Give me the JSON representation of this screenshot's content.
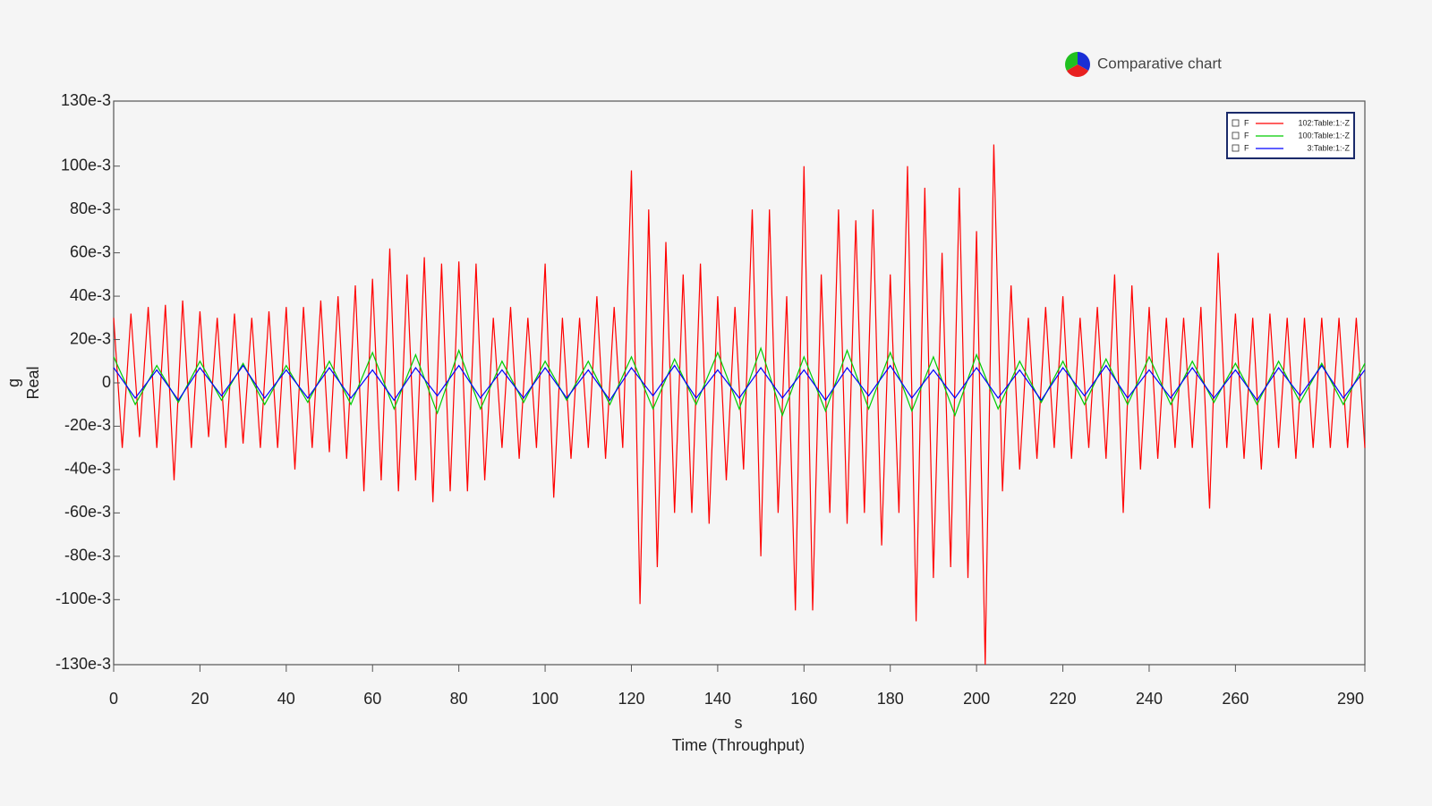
{
  "header": {
    "title": "Comparative chart"
  },
  "chart_data": {
    "type": "line",
    "ylabel": [
      "g",
      "Real"
    ],
    "xlabel": [
      "s",
      "Time (Throughput)"
    ],
    "xlim": [
      0,
      290
    ],
    "xticks": [
      0,
      20,
      40,
      60,
      80,
      100,
      120,
      140,
      160,
      180,
      200,
      220,
      240,
      260,
      290
    ],
    "ylim": [
      -0.13,
      0.13
    ],
    "yticks": [
      {
        "value": 0.13,
        "label": "130e-3"
      },
      {
        "value": 0.1,
        "label": "100e-3"
      },
      {
        "value": 0.08,
        "label": "80e-3"
      },
      {
        "value": 0.06,
        "label": "60e-3"
      },
      {
        "value": 0.04,
        "label": "40e-3"
      },
      {
        "value": 0.02,
        "label": "20e-3"
      },
      0,
      {
        "value": -0.02,
        "label": "-20e-3"
      },
      {
        "value": -0.04,
        "label": "-40e-3"
      },
      {
        "value": -0.06,
        "label": "-60e-3"
      },
      {
        "value": -0.08,
        "label": "-80e-3"
      },
      {
        "value": -0.1,
        "label": "-100e-3"
      },
      {
        "value": -0.13,
        "label": "-130e-3"
      }
    ],
    "legend_flag": "F",
    "series": [
      {
        "name": "102:Table:1:-Z",
        "color": "#ff0000",
        "x": [
          0,
          2,
          4,
          6,
          8,
          10,
          12,
          14,
          16,
          18,
          20,
          22,
          24,
          26,
          28,
          30,
          32,
          34,
          36,
          38,
          40,
          42,
          44,
          46,
          48,
          50,
          52,
          54,
          56,
          58,
          60,
          62,
          64,
          66,
          68,
          70,
          72,
          74,
          76,
          78,
          80,
          82,
          84,
          86,
          88,
          90,
          92,
          94,
          96,
          98,
          100,
          102,
          104,
          106,
          108,
          110,
          112,
          114,
          116,
          118,
          120,
          122,
          124,
          126,
          128,
          130,
          132,
          134,
          136,
          138,
          140,
          142,
          144,
          146,
          148,
          150,
          152,
          154,
          156,
          158,
          160,
          162,
          164,
          166,
          168,
          170,
          172,
          174,
          176,
          178,
          180,
          182,
          184,
          186,
          188,
          190,
          192,
          194,
          196,
          198,
          200,
          202,
          204,
          206,
          208,
          210,
          212,
          214,
          216,
          218,
          220,
          222,
          224,
          226,
          228,
          230,
          232,
          234,
          236,
          238,
          240,
          242,
          244,
          246,
          248,
          250,
          252,
          254,
          256,
          258,
          260,
          262,
          264,
          266,
          268,
          270,
          272,
          274,
          276,
          278,
          280,
          282,
          284,
          286,
          288,
          290
        ],
        "values": [
          0.03,
          -0.03,
          0.032,
          -0.025,
          0.035,
          -0.03,
          0.036,
          -0.045,
          0.038,
          -0.03,
          0.033,
          -0.025,
          0.03,
          -0.03,
          0.032,
          -0.028,
          0.03,
          -0.03,
          0.033,
          -0.03,
          0.035,
          -0.04,
          0.035,
          -0.03,
          0.038,
          -0.032,
          0.04,
          -0.035,
          0.045,
          -0.05,
          0.048,
          -0.045,
          0.062,
          -0.05,
          0.05,
          -0.045,
          0.058,
          -0.055,
          0.055,
          -0.05,
          0.056,
          -0.05,
          0.055,
          -0.045,
          0.03,
          -0.03,
          0.035,
          -0.035,
          0.03,
          -0.03,
          0.055,
          -0.053,
          0.03,
          -0.035,
          0.03,
          -0.03,
          0.04,
          -0.035,
          0.035,
          -0.03,
          0.098,
          -0.102,
          0.08,
          -0.085,
          0.065,
          -0.06,
          0.05,
          -0.06,
          0.055,
          -0.065,
          0.04,
          -0.045,
          0.035,
          -0.04,
          0.08,
          -0.08,
          0.08,
          -0.06,
          0.04,
          -0.105,
          0.1,
          -0.105,
          0.05,
          -0.06,
          0.08,
          -0.065,
          0.075,
          -0.06,
          0.08,
          -0.075,
          0.05,
          -0.06,
          0.1,
          -0.11,
          0.09,
          -0.09,
          0.06,
          -0.085,
          0.09,
          -0.09,
          0.07,
          -0.13,
          0.11,
          -0.05,
          0.045,
          -0.04,
          0.03,
          -0.035,
          0.035,
          -0.03,
          0.04,
          -0.035,
          0.03,
          -0.03,
          0.035,
          -0.035,
          0.05,
          -0.06,
          0.045,
          -0.04,
          0.035,
          -0.035,
          0.03,
          -0.03,
          0.03,
          -0.03,
          0.035,
          -0.058,
          0.06,
          -0.03,
          0.032,
          -0.035,
          0.03,
          -0.04,
          0.032,
          -0.03,
          0.03,
          -0.035,
          0.03,
          -0.03,
          0.03,
          -0.03,
          0.03,
          -0.03,
          0.03,
          -0.03
        ]
      },
      {
        "name": "100:Table:1:-Z",
        "color": "#00cc00",
        "x": [
          0,
          5,
          10,
          15,
          20,
          25,
          30,
          35,
          40,
          45,
          50,
          55,
          60,
          65,
          70,
          75,
          80,
          85,
          90,
          95,
          100,
          105,
          110,
          115,
          120,
          125,
          130,
          135,
          140,
          145,
          150,
          155,
          160,
          165,
          170,
          175,
          180,
          185,
          190,
          195,
          200,
          205,
          210,
          215,
          220,
          225,
          230,
          235,
          240,
          245,
          250,
          255,
          260,
          265,
          270,
          275,
          280,
          285,
          290
        ],
        "values": [
          0.012,
          -0.01,
          0.008,
          -0.009,
          0.01,
          -0.008,
          0.009,
          -0.01,
          0.008,
          -0.009,
          0.01,
          -0.01,
          0.014,
          -0.012,
          0.013,
          -0.014,
          0.015,
          -0.012,
          0.01,
          -0.009,
          0.01,
          -0.008,
          0.01,
          -0.01,
          0.012,
          -0.012,
          0.011,
          -0.01,
          0.014,
          -0.012,
          0.016,
          -0.015,
          0.012,
          -0.013,
          0.015,
          -0.012,
          0.014,
          -0.013,
          0.012,
          -0.015,
          0.013,
          -0.012,
          0.01,
          -0.009,
          0.01,
          -0.01,
          0.011,
          -0.01,
          0.012,
          -0.01,
          0.01,
          -0.009,
          0.009,
          -0.01,
          0.01,
          -0.009,
          0.009,
          -0.01,
          0.009
        ]
      },
      {
        "name": "3:Table:1:-Z",
        "color": "#0000ff",
        "x": [
          0,
          5,
          10,
          15,
          20,
          25,
          30,
          35,
          40,
          45,
          50,
          55,
          60,
          65,
          70,
          75,
          80,
          85,
          90,
          95,
          100,
          105,
          110,
          115,
          120,
          125,
          130,
          135,
          140,
          145,
          150,
          155,
          160,
          165,
          170,
          175,
          180,
          185,
          190,
          195,
          200,
          205,
          210,
          215,
          220,
          225,
          230,
          235,
          240,
          245,
          250,
          255,
          260,
          265,
          270,
          275,
          280,
          285,
          290
        ],
        "values": [
          0.007,
          -0.007,
          0.006,
          -0.008,
          0.007,
          -0.006,
          0.008,
          -0.007,
          0.006,
          -0.007,
          0.007,
          -0.007,
          0.006,
          -0.008,
          0.007,
          -0.006,
          0.008,
          -0.007,
          0.006,
          -0.007,
          0.007,
          -0.007,
          0.006,
          -0.008,
          0.007,
          -0.006,
          0.008,
          -0.007,
          0.006,
          -0.007,
          0.007,
          -0.007,
          0.006,
          -0.008,
          0.007,
          -0.006,
          0.008,
          -0.007,
          0.006,
          -0.007,
          0.007,
          -0.007,
          0.006,
          -0.008,
          0.007,
          -0.006,
          0.008,
          -0.007,
          0.006,
          -0.007,
          0.007,
          -0.007,
          0.006,
          -0.008,
          0.007,
          -0.006,
          0.008,
          -0.007,
          0.006
        ]
      }
    ]
  }
}
